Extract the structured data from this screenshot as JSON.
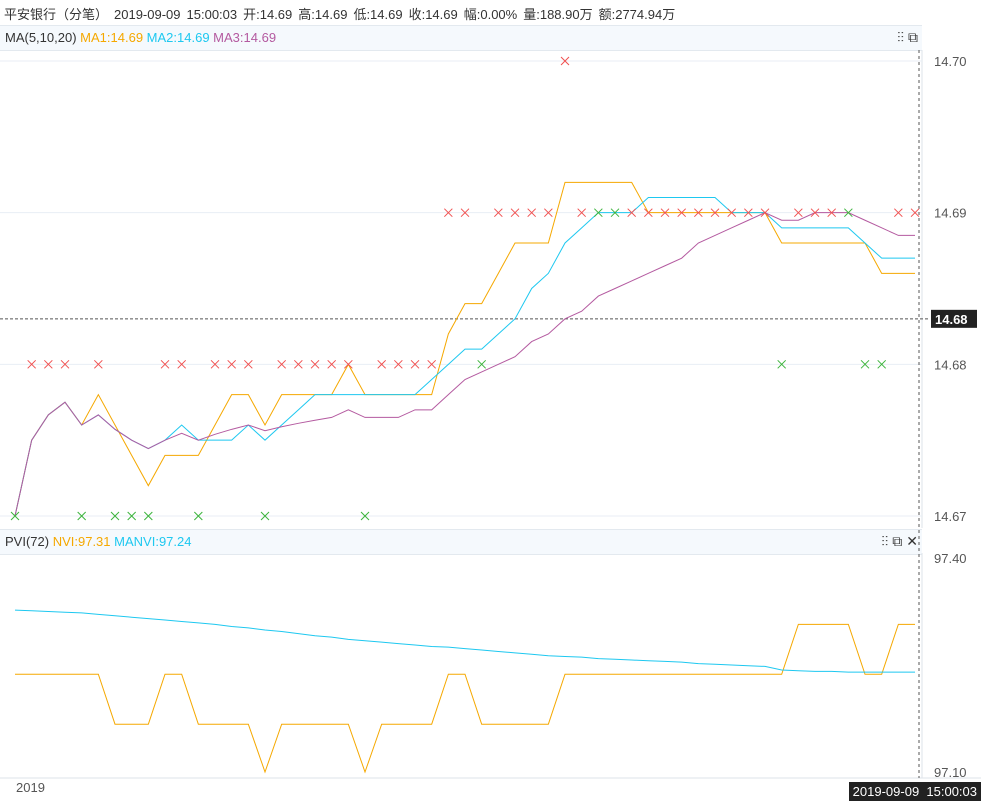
{
  "header": {
    "name": "平安银行（分笔）",
    "date": "2019-09-09",
    "time": "15:00:03",
    "open": "开:14.69",
    "high": "高:14.69",
    "low": "低:14.69",
    "close": "收:14.69",
    "change": "幅:0.00%",
    "volume": "量:188.90万",
    "amount": "额:2774.94万"
  },
  "ma_legend": {
    "label": "MA(5,10,20)",
    "ma1": "MA1:14.69",
    "ma2": "MA2:14.69",
    "ma3": "MA3:14.69"
  },
  "pvi_legend": {
    "label": "PVI(72)",
    "nvi": "NVI:97.31",
    "manvi": "MANVI:97.24"
  },
  "icons": {
    "settings": "sliders-icon",
    "restore": "restore-icon",
    "close": "close-icon"
  },
  "colors": {
    "ma1": "#f5a800",
    "ma2": "#1ec8f0",
    "ma3": "#b45aa0",
    "up": "#f05050",
    "down": "#3cb43c"
  },
  "footer": {
    "year": "2019",
    "cursor_time": "2019-09-09  15:00:03"
  },
  "chart_data": [
    {
      "type": "line",
      "title": "",
      "yticks": [
        "14.70",
        "14.69",
        "14.68",
        "14.67"
      ],
      "ylim": [
        14.67,
        14.7
      ],
      "reference_label": "14.68",
      "reference_value": 14.683,
      "prices": [
        14.67,
        14.68,
        14.68,
        14.68,
        14.67,
        14.68,
        14.67,
        14.67,
        14.67,
        14.68,
        14.68,
        14.67,
        14.68,
        14.68,
        14.68,
        14.67,
        14.68,
        14.68,
        14.68,
        14.68,
        14.68,
        14.67,
        14.68,
        14.68,
        14.68,
        14.68,
        14.69,
        14.69,
        14.68,
        14.69,
        14.69,
        14.69,
        14.69,
        14.7,
        14.69,
        14.69,
        14.69,
        14.69,
        14.69,
        14.69,
        14.69,
        14.69,
        14.69,
        14.69,
        14.69,
        14.69,
        14.68,
        14.69,
        14.69,
        14.69,
        14.69,
        14.68,
        14.68,
        14.69,
        14.69
      ],
      "direction": [
        "d",
        "u",
        "u",
        "u",
        "d",
        "u",
        "d",
        "d",
        "d",
        "u",
        "u",
        "d",
        "u",
        "u",
        "u",
        "d",
        "u",
        "u",
        "u",
        "u",
        "u",
        "d",
        "u",
        "u",
        "u",
        "u",
        "u",
        "u",
        "d",
        "u",
        "u",
        "u",
        "u",
        "u",
        "u",
        "d",
        "d",
        "u",
        "u",
        "u",
        "u",
        "u",
        "u",
        "u",
        "u",
        "u",
        "d",
        "u",
        "u",
        "u",
        "d",
        "d",
        "d",
        "u",
        "u"
      ],
      "series": [
        {
          "name": "MA1",
          "period": 5
        },
        {
          "name": "MA2",
          "period": 10
        },
        {
          "name": "MA3",
          "period": 20
        }
      ]
    },
    {
      "type": "line",
      "title": "",
      "yticks": [
        "97.40",
        "97.10"
      ],
      "ylim": [
        97.1,
        97.4
      ],
      "series": [
        {
          "name": "NVI",
          "values": [
            97.237,
            97.237,
            97.237,
            97.237,
            97.237,
            97.237,
            97.167,
            97.167,
            97.167,
            97.237,
            97.237,
            97.167,
            97.167,
            97.167,
            97.167,
            97.1,
            97.167,
            97.167,
            97.167,
            97.167,
            97.167,
            97.1,
            97.167,
            97.167,
            97.167,
            97.167,
            97.237,
            97.237,
            97.167,
            97.167,
            97.167,
            97.167,
            97.167,
            97.237,
            97.237,
            97.237,
            97.237,
            97.237,
            97.237,
            97.237,
            97.237,
            97.237,
            97.237,
            97.237,
            97.237,
            97.237,
            97.237,
            97.307,
            97.307,
            97.307,
            97.307,
            97.237,
            97.237,
            97.307,
            97.307
          ]
        },
        {
          "name": "MANVI",
          "values": [
            97.327,
            97.326,
            97.325,
            97.324,
            97.323,
            97.321,
            97.319,
            97.317,
            97.315,
            97.313,
            97.311,
            97.309,
            97.307,
            97.304,
            97.302,
            97.299,
            97.297,
            97.294,
            97.291,
            97.289,
            97.286,
            97.284,
            97.282,
            97.28,
            97.278,
            97.276,
            97.275,
            97.273,
            97.271,
            97.269,
            97.267,
            97.265,
            97.263,
            97.262,
            97.261,
            97.259,
            97.258,
            97.257,
            97.256,
            97.255,
            97.254,
            97.252,
            97.251,
            97.25,
            97.249,
            97.248,
            97.243,
            97.242,
            97.241,
            97.241,
            97.24,
            97.24,
            97.24,
            97.24,
            97.24
          ]
        }
      ]
    }
  ]
}
